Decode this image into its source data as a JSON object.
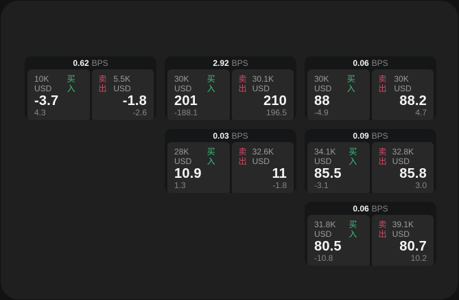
{
  "labels": {
    "bps": "BPS",
    "buy": "买入",
    "sell": "卖出"
  },
  "colors": {
    "outer_bg": "#121212",
    "surface_bg": "#1e1f1e",
    "card_bg": "#151617",
    "panel_bg": "#282828",
    "buy_green": "#3fbf7c",
    "sell_red": "#d24a66"
  },
  "cards": [
    {
      "row": 1,
      "col": 1,
      "spread_bps": "0.62",
      "buy": {
        "size": "10K USD",
        "price": "-3.7",
        "delta": "4.3"
      },
      "sell": {
        "size": "5.5K USD",
        "price": "-1.8",
        "delta": "-2.6"
      }
    },
    {
      "row": 1,
      "col": 2,
      "spread_bps": "2.92",
      "buy": {
        "size": "30K USD",
        "price": "201",
        "delta": "-188.1"
      },
      "sell": {
        "size": "30.1K USD",
        "price": "210",
        "delta": "196.5"
      }
    },
    {
      "row": 1,
      "col": 3,
      "spread_bps": "0.06",
      "buy": {
        "size": "30K USD",
        "price": "88",
        "delta": "-4.9"
      },
      "sell": {
        "size": "30K USD",
        "price": "88.2",
        "delta": "4.7"
      }
    },
    {
      "row": 2,
      "col": 2,
      "spread_bps": "0.03",
      "buy": {
        "size": "28K USD",
        "price": "10.9",
        "delta": "1.3"
      },
      "sell": {
        "size": "32.6K USD",
        "price": "11",
        "delta": "-1.8"
      }
    },
    {
      "row": 2,
      "col": 3,
      "spread_bps": "0.09",
      "buy": {
        "size": "34.1K USD",
        "price": "85.5",
        "delta": "-3.1"
      },
      "sell": {
        "size": "32.8K USD",
        "price": "85.8",
        "delta": "3.0"
      }
    },
    {
      "row": 3,
      "col": 3,
      "spread_bps": "0.06",
      "buy": {
        "size": "31.8K USD",
        "price": "80.5",
        "delta": "-10.8"
      },
      "sell": {
        "size": "39.1K USD",
        "price": "80.7",
        "delta": "10.2"
      }
    }
  ]
}
